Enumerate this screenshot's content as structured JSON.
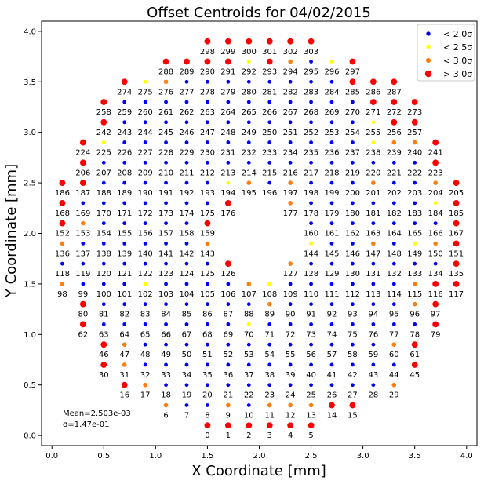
{
  "chart_data": {
    "type": "scatter",
    "title": "Offset Centroids for 04/02/2015",
    "xlabel": "X Coordinate [mm]",
    "ylabel": "Y Coordinate [mm]",
    "xlim": [
      -0.1,
      4.1
    ],
    "ylim": [
      -0.1,
      4.1
    ],
    "xticks": [
      "0.0",
      "0.5",
      "1.0",
      "1.5",
      "2.0",
      "2.5",
      "3.0",
      "3.5",
      "4.0"
    ],
    "yticks": [
      "0.0",
      "0.5",
      "1.0",
      "1.5",
      "2.0",
      "2.5",
      "3.0",
      "3.5",
      "4.0"
    ],
    "grid": false,
    "legend_position": "top-right",
    "legend": [
      {
        "label": "< 2.0σ",
        "color": "#0000ff"
      },
      {
        "label": "< 2.5σ",
        "color": "#ffff00"
      },
      {
        "label": "< 3.0σ",
        "color": "#ff7f0e"
      },
      {
        "label": "> 3.0σ",
        "color": "#ff0000"
      }
    ],
    "annotations": {
      "mean": "Mean=2.503e-03",
      "sigma": "σ=1.47e-01"
    },
    "categories": [
      "< 2.0σ",
      "< 2.5σ",
      "< 3.0σ",
      "> 3.0σ"
    ],
    "rows": [
      {
        "y": 0.1,
        "x0": 1.5,
        "start": 0,
        "count": 6,
        "cats": [
          3,
          3,
          3,
          3,
          3,
          3
        ]
      },
      {
        "y": 0.3,
        "x0": 1.1,
        "start": 6,
        "count": 10,
        "cats": [
          2,
          0,
          0,
          2,
          0,
          2,
          2,
          2,
          3,
          3
        ]
      },
      {
        "y": 0.5,
        "x0": 0.7,
        "start": 16,
        "count": 14,
        "cats": [
          3,
          2,
          0,
          0,
          0,
          0,
          0,
          0,
          0,
          0,
          0,
          0,
          0,
          2
        ]
      },
      {
        "y": 0.7,
        "x0": 0.5,
        "start": 30,
        "count": 16,
        "cats": [
          3,
          2,
          0,
          0,
          0,
          0,
          0,
          0,
          0,
          0,
          0,
          0,
          0,
          0,
          0,
          3
        ]
      },
      {
        "y": 0.9,
        "x0": 0.5,
        "start": 46,
        "count": 16,
        "cats": [
          3,
          2,
          0,
          0,
          0,
          0,
          0,
          0,
          0,
          0,
          0,
          0,
          0,
          0,
          2,
          3
        ]
      },
      {
        "y": 1.1,
        "x0": 0.3,
        "start": 62,
        "count": 18,
        "cats": [
          3,
          0,
          0,
          0,
          0,
          0,
          0,
          0,
          1,
          0,
          0,
          0,
          0,
          0,
          0,
          0,
          0,
          3
        ]
      },
      {
        "y": 1.3,
        "x0": 0.3,
        "start": 80,
        "count": 18,
        "cats": [
          3,
          0,
          0,
          0,
          0,
          0,
          0,
          0,
          0,
          2,
          0,
          0,
          0,
          0,
          0,
          0,
          2,
          3
        ]
      },
      {
        "y": 1.5,
        "x0": 0.1,
        "start": 98,
        "count": 20,
        "cats": [
          2,
          0,
          0,
          0,
          1,
          0,
          0,
          0,
          0,
          2,
          1,
          0,
          0,
          0,
          0,
          0,
          0,
          2,
          3,
          3
        ]
      },
      {
        "y": 1.7,
        "x0": 0.1,
        "start": 118,
        "count": 9,
        "cats": [
          0,
          0,
          0,
          0,
          0,
          0,
          0,
          0,
          3
        ]
      },
      {
        "y": 1.7,
        "x0": 2.3,
        "start": 127,
        "count": 9,
        "cats": [
          2,
          0,
          0,
          0,
          0,
          0,
          0,
          0,
          3
        ]
      },
      {
        "y": 1.9,
        "x0": 0.1,
        "start": 136,
        "count": 8,
        "cats": [
          2,
          0,
          0,
          0,
          0,
          0,
          0,
          2
        ]
      },
      {
        "y": 1.9,
        "x0": 2.5,
        "start": 144,
        "count": 8,
        "cats": [
          1,
          0,
          0,
          2,
          0,
          1,
          2,
          3
        ]
      },
      {
        "y": 2.1,
        "x0": 0.1,
        "start": 152,
        "count": 8,
        "cats": [
          3,
          2,
          0,
          0,
          0,
          0,
          0,
          3
        ]
      },
      {
        "y": 2.1,
        "x0": 2.5,
        "start": 160,
        "count": 8,
        "cats": [
          0,
          0,
          0,
          0,
          0,
          0,
          0,
          3
        ]
      },
      {
        "y": 2.3,
        "x0": 0.1,
        "start": 168,
        "count": 9,
        "cats": [
          3,
          0,
          0,
          0,
          0,
          0,
          0,
          0,
          3
        ]
      },
      {
        "y": 2.3,
        "x0": 2.3,
        "start": 177,
        "count": 9,
        "cats": [
          2,
          0,
          0,
          0,
          0,
          0,
          0,
          1,
          3
        ]
      },
      {
        "y": 2.5,
        "x0": 0.1,
        "start": 186,
        "count": 20,
        "cats": [
          3,
          3,
          0,
          0,
          0,
          0,
          0,
          0,
          1,
          2,
          0,
          2,
          0,
          0,
          0,
          2,
          0,
          0,
          2,
          3
        ]
      },
      {
        "y": 2.7,
        "x0": 0.3,
        "start": 206,
        "count": 18,
        "cats": [
          3,
          0,
          0,
          0,
          0,
          0,
          0,
          0,
          0,
          0,
          0,
          0,
          0,
          0,
          0,
          0,
          0,
          3
        ]
      },
      {
        "y": 2.9,
        "x0": 0.3,
        "start": 224,
        "count": 18,
        "cats": [
          3,
          1,
          0,
          0,
          0,
          0,
          0,
          0,
          0,
          0,
          0,
          0,
          0,
          0,
          1,
          2,
          2,
          3
        ]
      },
      {
        "y": 3.1,
        "x0": 0.5,
        "start": 242,
        "count": 16,
        "cats": [
          3,
          0,
          0,
          0,
          0,
          0,
          0,
          0,
          0,
          0,
          0,
          0,
          0,
          1,
          3,
          3
        ]
      },
      {
        "y": 3.3,
        "x0": 0.5,
        "start": 258,
        "count": 16,
        "cats": [
          3,
          0,
          0,
          0,
          0,
          0,
          0,
          0,
          0,
          0,
          0,
          0,
          0,
          3,
          3,
          3
        ]
      },
      {
        "y": 3.5,
        "x0": 0.7,
        "start": 274,
        "count": 14,
        "cats": [
          3,
          1,
          2,
          0,
          0,
          0,
          0,
          0,
          0,
          0,
          0,
          3,
          3,
          3
        ]
      },
      {
        "y": 3.7,
        "x0": 1.1,
        "start": 288,
        "count": 10,
        "cats": [
          3,
          3,
          3,
          3,
          1,
          3,
          2,
          0,
          1,
          3
        ]
      },
      {
        "y": 3.9,
        "x0": 1.5,
        "start": 298,
        "count": 6,
        "cats": [
          3,
          3,
          3,
          3,
          3,
          3
        ]
      }
    ]
  }
}
